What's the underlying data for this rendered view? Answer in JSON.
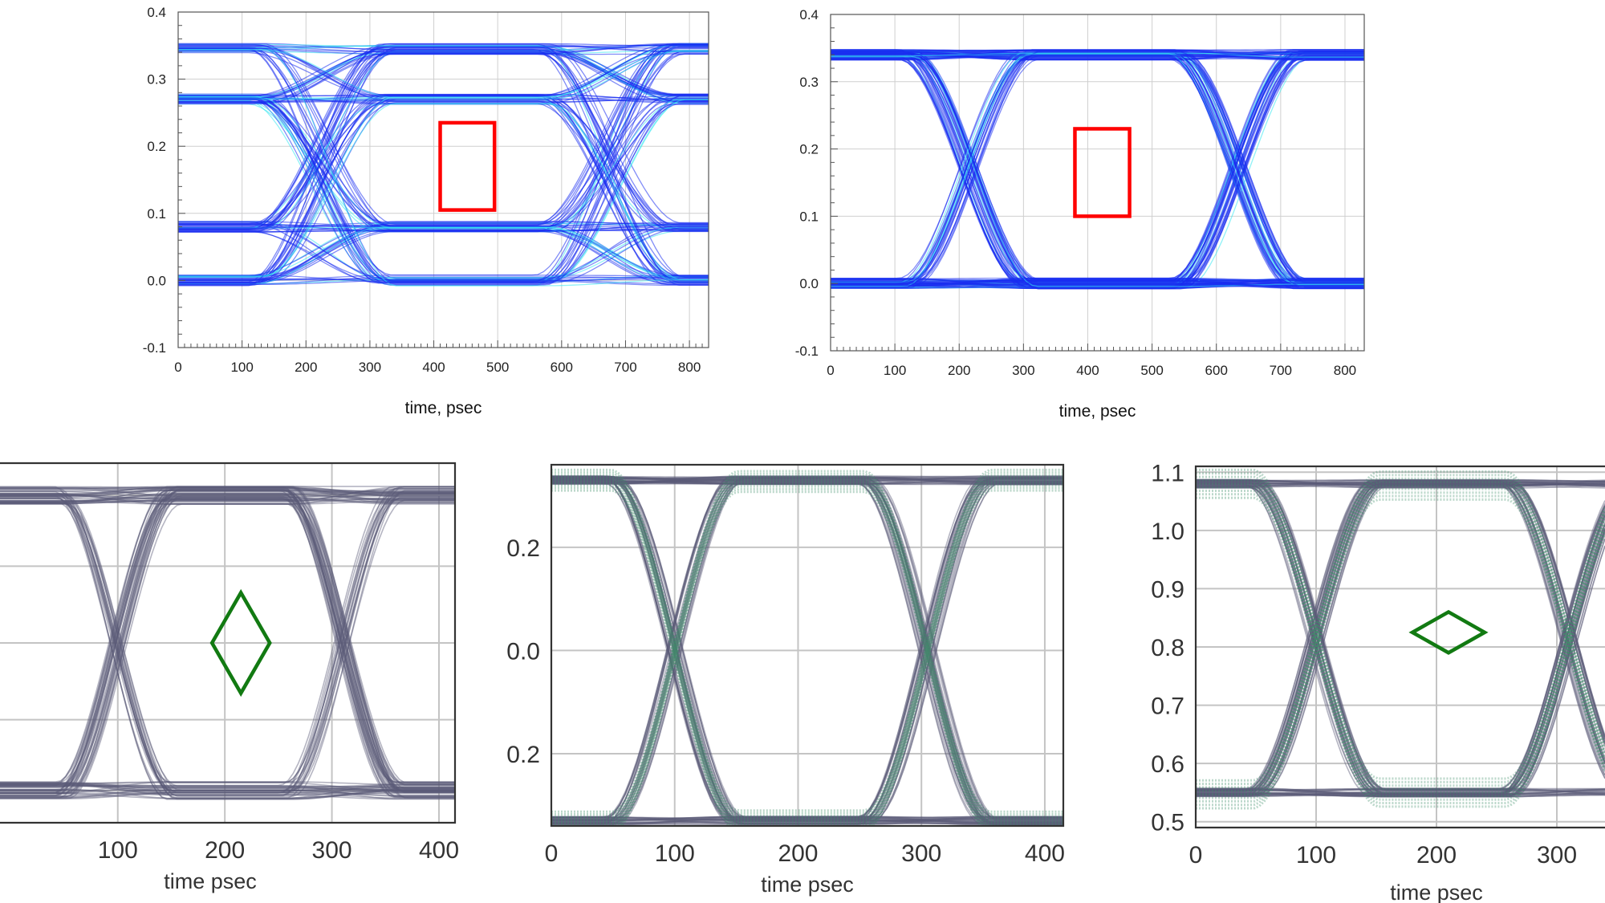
{
  "colors": {
    "top_trace": "#1a2ef0",
    "top_trace_highlight": "#34e8f0",
    "top_mask": "#ff0000",
    "bottom_trace": "#5a5a78",
    "bottom_trace_fill": "#3f8f6a",
    "bottom_mask": "#127a12",
    "grid_top": "#cfcfcf",
    "grid_bottom": "#c4c4c4"
  },
  "chart_data": [
    {
      "type": "line",
      "kind": "eye-diagram",
      "levels": 4,
      "title": "",
      "xlabel": "time, psec",
      "ylabel": "",
      "xlim": [
        0,
        830
      ],
      "ylim": [
        -0.1,
        0.4
      ],
      "xticks": [
        "0",
        "100",
        "200",
        "300",
        "400",
        "500",
        "600",
        "700",
        "800"
      ],
      "yticks": [
        "-0.1",
        "0.0",
        "0.1",
        "0.2",
        "0.3",
        "0.4"
      ],
      "signal_levels": [
        0.0,
        0.08,
        0.27,
        0.345
      ],
      "crossing_times": [
        225,
        675
      ],
      "mask": {
        "shape": "rectangle",
        "x": [
          410,
          495
        ],
        "y": [
          0.105,
          0.235
        ]
      },
      "grid": true
    },
    {
      "type": "line",
      "kind": "eye-diagram",
      "levels": 2,
      "title": "",
      "xlabel": "time, psec",
      "ylabel": "",
      "xlim": [
        0,
        830
      ],
      "ylim": [
        -0.1,
        0.4
      ],
      "xticks": [
        "0",
        "100",
        "200",
        "300",
        "400",
        "500",
        "600",
        "700",
        "800"
      ],
      "yticks": [
        "-0.1",
        "0.0",
        "0.1",
        "0.2",
        "0.3",
        "0.4"
      ],
      "signal_levels": [
        0.0,
        0.34
      ],
      "crossing_times": [
        215,
        635
      ],
      "mask": {
        "shape": "rectangle",
        "x": [
          380,
          465
        ],
        "y": [
          0.1,
          0.23
        ]
      },
      "grid": true
    },
    {
      "type": "line",
      "kind": "eye-diagram",
      "levels": 2,
      "title": "",
      "xlabel": "time psec",
      "ylabel": "",
      "xlim": [
        -10,
        415
      ],
      "xticks": [
        "100",
        "200",
        "300",
        "400"
      ],
      "yticks": [],
      "signal_levels": [
        0.0,
        1.0
      ],
      "crossing_times": [
        100,
        310
      ],
      "mask": {
        "shape": "diamond",
        "center_x": 215,
        "center_level": 0.5,
        "half_width": 27,
        "half_height": 0.17
      },
      "grid": true
    },
    {
      "type": "line",
      "kind": "eye-diagram",
      "levels": 2,
      "title": "",
      "xlabel": "time psec",
      "ylabel": "",
      "xlim": [
        0,
        415
      ],
      "ylim": [
        -0.34,
        0.36
      ],
      "xticks": [
        "0",
        "100",
        "200",
        "300",
        "400"
      ],
      "yticks": [
        "0.2",
        "0.0",
        "0.2"
      ],
      "signal_levels": [
        -0.33,
        0.33
      ],
      "crossing_times": [
        100,
        305
      ],
      "grid": true
    },
    {
      "type": "line",
      "kind": "eye-diagram",
      "levels": 2,
      "title": "",
      "xlabel": "time psec",
      "ylabel": "",
      "xlim": [
        0,
        340
      ],
      "ylim": [
        0.49,
        1.11
      ],
      "xticks": [
        "0",
        "100",
        "200",
        "300"
      ],
      "yticks": [
        "1.1",
        "1.0",
        "0.9",
        "0.8",
        "0.7",
        "0.6",
        "0.5"
      ],
      "signal_levels": [
        0.55,
        1.08
      ],
      "crossing_times": [
        100,
        310
      ],
      "mask": {
        "shape": "diamond",
        "center_x": 210,
        "center_y": 0.825,
        "half_width": 30,
        "half_height": 0.035
      },
      "grid": true
    }
  ]
}
